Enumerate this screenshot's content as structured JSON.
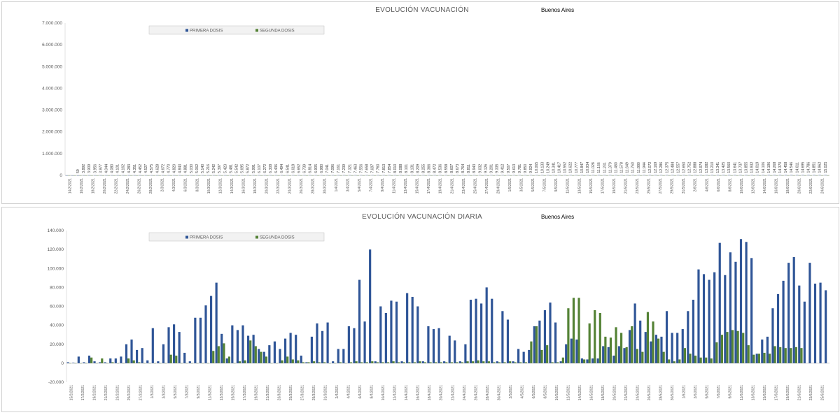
{
  "chart_data": [
    {
      "type": "bar",
      "title": "EVOLUCIÓN VACUNACIÓN",
      "subtitle": "Buenos Aires",
      "xlabel": "",
      "ylabel": "",
      "ylim": [
        0,
        7000000
      ],
      "yticks": [
        "0",
        "1.000.000",
        "2.000.000",
        "3.000.000",
        "4.000.000",
        "5.000.000",
        "6.000.000",
        "7.000.000"
      ],
      "legend_position": "top-left",
      "grid": false,
      "colors": {
        "primera": "#2f5597",
        "segunda": "#548235"
      },
      "xtick_labels": [
        "14/2/2021",
        "16/2/2021",
        "18/2/2021",
        "20/2/2021",
        "22/2/2021",
        "24/2/2021",
        "26/2/2021",
        "28/2/2021",
        "2/3/2021",
        "4/3/2021",
        "6/3/2021",
        "8/3/2021",
        "10/3/2021",
        "12/3/2021",
        "14/3/2021",
        "16/3/2021",
        "18/3/2021",
        "20/3/2021",
        "22/3/2021",
        "24/3/2021",
        "26/3/2021",
        "28/3/2021",
        "30/3/2021",
        "1/4/2021",
        "3/4/2021",
        "5/4/2021",
        "7/4/2021",
        "9/4/2021",
        "11/4/2021",
        "13/4/2021",
        "15/4/2021",
        "17/4/2021",
        "19/4/2021",
        "21/4/2021",
        "23/4/2021",
        "25/4/2021",
        "27/4/2021",
        "29/4/2021",
        "1/5/2021",
        "3/5/2021",
        "5/5/2021",
        "7/5/2021",
        "9/5/2021",
        "11/5/2021",
        "13/5/2021",
        "15/5/2021",
        "17/5/2021",
        "19/5/2021",
        "21/5/2021",
        "23/5/2021",
        "25/5/2021",
        "27/5/2021",
        "29/5/2021",
        "31/5/2021",
        "2/6/2021",
        "4/6/2021",
        "6/6/2021",
        "8/6/2021",
        "10/6/2021",
        "12/6/2021",
        "14/6/2021",
        "16/6/2021",
        "18/6/2021",
        "20/6/2021",
        "22/6/2021",
        "24/6/2021"
      ],
      "series": [
        {
          "name": "PRIMERA DOSIS",
          "values": [
            0,
            0,
            59,
            3892,
            3909,
            3956,
            3977,
            4044,
            4080,
            4101,
            4162,
            4283,
            4351,
            4452,
            4527,
            4575,
            4628,
            4672,
            4770,
            4820,
            4843,
            4881,
            5030,
            5062,
            5140,
            5216,
            5242,
            5397,
            5423,
            5481,
            5542,
            5695,
            5872,
            5991,
            6107,
            6272,
            6308,
            6436,
            6494,
            6541,
            6618,
            6652,
            6739,
            6814,
            6905,
            6980,
            7041,
            7096,
            7161,
            7239,
            7321,
            7463,
            7556,
            7658,
            7697,
            7760,
            7813,
            7854,
            8010,
            8088,
            8101,
            8131,
            8209,
            8255,
            8366,
            8472,
            8536,
            8558,
            8607,
            8673,
            8764,
            8811,
            8943,
            9032,
            9126,
            9201,
            9335,
            9412,
            9507,
            9613,
            9781,
            9850,
            9924,
            10065,
            10133,
            10249,
            10341,
            10417,
            10552,
            10622,
            10777,
            10847,
            10934,
            11028,
            11166,
            11231,
            11379,
            11480,
            11578,
            11649,
            11760,
            11880,
            11944,
            12072,
            12169,
            12286,
            12375,
            12484,
            12557,
            12650,
            12752,
            12888,
            12974,
            13082,
            13210,
            13341,
            13425,
            13560,
            13641,
            13737,
            13855,
            13932,
            14019,
            14106,
            14196,
            14268,
            14370,
            14458,
            14546,
            14611,
            14695,
            14786,
            14851,
            14962,
            15025
          ]
        },
        {
          "name": "SEGUNDA DOSIS",
          "values": [
            0,
            0,
            1,
            4,
            7,
            8,
            10,
            12,
            15,
            16,
            17,
            19,
            20,
            22,
            23,
            24,
            25,
            26,
            28,
            29,
            30,
            31,
            33,
            35,
            37,
            40,
            43,
            45,
            47,
            50,
            52,
            54,
            55,
            57,
            59,
            61,
            63,
            65,
            67,
            69,
            71,
            73,
            75,
            78,
            81,
            85,
            88,
            91,
            95,
            98,
            101,
            104,
            107,
            110,
            112,
            115,
            118,
            120,
            122,
            124,
            126,
            128,
            130,
            132,
            134,
            136,
            138,
            140,
            142,
            144,
            146,
            148,
            150,
            152,
            154,
            156,
            158,
            160,
            162,
            164,
            166,
            168,
            170,
            172,
            174,
            176,
            178,
            180,
            182,
            184,
            186,
            188,
            190,
            192,
            194,
            196,
            198,
            200,
            202,
            204,
            206,
            208,
            210,
            212,
            214,
            216,
            218,
            220,
            222,
            224,
            226,
            228,
            230,
            232,
            234,
            236,
            238,
            240,
            242,
            244,
            246,
            248,
            250,
            252,
            254,
            256,
            258,
            260,
            262,
            264,
            266,
            268,
            270,
            272,
            274,
            276
          ]
        }
      ]
    },
    {
      "type": "bar",
      "title": "EVOLUCIÓN VACUNACIÓN DIARIA",
      "subtitle": "Buenos Aires",
      "xlabel": "",
      "ylabel": "",
      "ylim": [
        -20000,
        140000
      ],
      "yticks": [
        "-20.000",
        "0",
        "20.000",
        "40.000",
        "60.000",
        "80.000",
        "100.000",
        "120.000",
        "140.000"
      ],
      "legend_position": "top-left",
      "grid": false,
      "colors": {
        "primera": "#2f5597",
        "segunda": "#548235"
      },
      "xtick_labels": [
        "15/2/2021",
        "17/2/2021",
        "19/2/2021",
        "21/2/2021",
        "23/2/2021",
        "25/2/2021",
        "27/2/2021",
        "1/3/2021",
        "3/3/2021",
        "5/3/2021",
        "7/3/2021",
        "9/3/2021",
        "11/3/2021",
        "13/3/2021",
        "15/3/2021",
        "17/3/2021",
        "19/3/2021",
        "21/3/2021",
        "23/3/2021",
        "25/3/2021",
        "27/3/2021",
        "29/3/2021",
        "31/3/2021",
        "2/4/2021",
        "4/4/2021",
        "6/4/2021",
        "8/4/2021",
        "10/4/2021",
        "12/4/2021",
        "14/4/2021",
        "16/4/2021",
        "18/4/2021",
        "20/4/2021",
        "22/4/2021",
        "24/4/2021",
        "26/4/2021",
        "28/4/2021",
        "30/4/2021",
        "2/5/2021",
        "4/5/2021",
        "6/5/2021",
        "8/5/2021",
        "10/5/2021",
        "12/5/2021",
        "14/5/2021",
        "16/5/2021",
        "18/5/2021",
        "20/5/2021",
        "22/5/2021",
        "24/5/2021",
        "26/5/2021",
        "28/5/2021",
        "30/5/2021",
        "1/6/2021",
        "3/6/2021",
        "5/6/2021",
        "7/6/2021",
        "9/6/2021",
        "11/6/2021",
        "13/6/2021",
        "15/6/2021",
        "17/6/2021",
        "19/6/2021",
        "21/6/2021",
        "23/6/2021",
        "25/6/2021"
      ],
      "series": [
        {
          "name": "PRIMERA DOSIS",
          "values": [
            1000,
            500,
            7000,
            1000,
            8000,
            2000,
            1000,
            1000,
            5000,
            5000,
            7000,
            20000,
            25000,
            14000,
            16000,
            3000,
            37000,
            2000,
            20000,
            38000,
            41000,
            33000,
            11000,
            2000,
            48000,
            48000,
            61000,
            71000,
            85000,
            31000,
            5000,
            40000,
            35000,
            40000,
            29000,
            30000,
            15000,
            12000,
            19000,
            23000,
            15000,
            26000,
            32000,
            30000,
            8000,
            1000,
            28000,
            42000,
            34000,
            43000,
            2000,
            15000,
            15000,
            39000,
            37000,
            88000,
            44000,
            120000,
            2000,
            60000,
            53000,
            66000,
            65000,
            2000,
            74000,
            70000,
            60000,
            2000,
            39000,
            36000,
            37000,
            2000,
            29000,
            24000,
            2000,
            20000,
            67000,
            68000,
            63000,
            80000,
            68000,
            2000,
            55000,
            46000,
            2000,
            15000,
            12000,
            14000,
            39000,
            45000,
            56000,
            64000,
            43000,
            2000,
            20000,
            26000,
            25000,
            5000,
            4000,
            5000,
            5000,
            18000,
            17000,
            8000,
            18000,
            16000,
            35000,
            63000,
            45000,
            33000,
            23000,
            30000,
            28000,
            55000,
            32000,
            32000,
            36000,
            55000,
            67000,
            99000,
            94000,
            88000,
            96000,
            127000,
            93000,
            117000,
            107000,
            131000,
            128000,
            111000,
            10000,
            25000,
            28000,
            58000,
            73000,
            87000,
            106000,
            112000,
            82000,
            65000,
            106000,
            84000,
            85000,
            77000
          ]
        },
        {
          "name": "SEGUNDA DOSIS",
          "values": [
            0,
            0,
            0,
            0,
            6000,
            0,
            5000,
            0,
            1000,
            0,
            0,
            5000,
            3000,
            1000,
            0,
            0,
            0,
            0,
            0,
            9000,
            8000,
            0,
            0,
            0,
            0,
            0,
            0,
            13000,
            18000,
            21000,
            7000,
            0,
            2000,
            3000,
            24000,
            18000,
            12000,
            7000,
            0,
            0,
            3000,
            7000,
            4000,
            3000,
            1000,
            1000,
            2000,
            1000,
            1000,
            0,
            0,
            1000,
            0,
            1000,
            2000,
            1000,
            1000,
            2000,
            1000,
            1000,
            1000,
            2000,
            1000,
            1000,
            1000,
            1000,
            2000,
            1000,
            1000,
            1000,
            1000,
            1000,
            1000,
            1000,
            1000,
            2000,
            2000,
            3000,
            2000,
            2000,
            1000,
            1000,
            1000,
            2000,
            1000,
            1000,
            1000,
            23000,
            39000,
            14000,
            19000,
            1000,
            1000,
            6000,
            58000,
            69000,
            69000,
            4000,
            42000,
            56000,
            53000,
            28000,
            27000,
            38000,
            32000,
            17000,
            39000,
            15000,
            12000,
            54000,
            44000,
            26000,
            12000,
            4000,
            2000,
            4000,
            16000,
            10000,
            8000,
            6000,
            6000,
            5000,
            22000,
            30000,
            33000,
            35000,
            34000,
            32000,
            19000,
            9000,
            10000,
            11000,
            10000,
            18000,
            17000,
            16000,
            16000,
            17000,
            16000
          ]
        }
      ]
    }
  ]
}
